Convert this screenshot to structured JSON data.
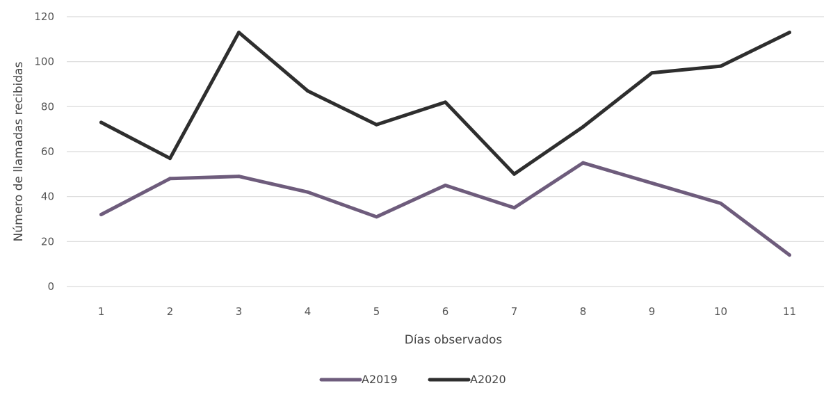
{
  "chart_data": {
    "type": "line",
    "x": [
      1,
      2,
      3,
      4,
      5,
      6,
      7,
      8,
      9,
      10,
      11
    ],
    "categories": [
      "1",
      "2",
      "3",
      "4",
      "5",
      "6",
      "7",
      "8",
      "9",
      "10",
      "11"
    ],
    "series": [
      {
        "name": "A2019",
        "color": "#6e5c7c",
        "values": [
          32,
          48,
          49,
          42,
          31,
          45,
          35,
          55,
          46,
          37,
          14
        ]
      },
      {
        "name": "A2020",
        "color": "#2e2e2e",
        "values": [
          73,
          57,
          113,
          87,
          72,
          82,
          50,
          71,
          95,
          98,
          113
        ]
      }
    ],
    "title": "",
    "xlabel": "Días observados",
    "ylabel": "Número de llamadas recibidas",
    "ylim": [
      0,
      120
    ],
    "yticks": [
      0,
      20,
      40,
      60,
      80,
      100,
      120
    ],
    "grid": true,
    "legend_position": "bottom-center",
    "grid_color": "#d9d9d9"
  }
}
